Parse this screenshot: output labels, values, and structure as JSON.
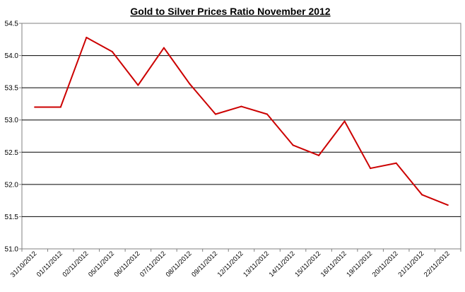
{
  "chart_data": {
    "type": "line",
    "title": "Gold to Silver Prices Ratio November 2012",
    "xlabel": "",
    "ylabel": "",
    "categories": [
      "31/10/2012",
      "01/11/2012",
      "02/11/2012",
      "05/11/2012",
      "06/11/2012",
      "07/11/2012",
      "08/11/2012",
      "09/11/2012",
      "12/11/2012",
      "13/11/2012",
      "14/11/2012",
      "15/11/2012",
      "16/11/2012",
      "19/11/2012",
      "20/11/2012",
      "21/11/2012",
      "22/11/2012"
    ],
    "series": [
      {
        "values": [
          53.2,
          53.2,
          54.28,
          54.06,
          53.54,
          54.12,
          53.56,
          53.09,
          53.21,
          53.09,
          52.61,
          52.45,
          52.98,
          52.25,
          52.33,
          51.84,
          51.68
        ]
      }
    ],
    "ylim": [
      51.0,
      54.5
    ],
    "yticks": [
      "51.0",
      "51.5",
      "52.0",
      "52.5",
      "53.0",
      "53.5",
      "54.0",
      "54.5"
    ],
    "grid": true,
    "legend": "none",
    "line_color": "#cc0000"
  }
}
